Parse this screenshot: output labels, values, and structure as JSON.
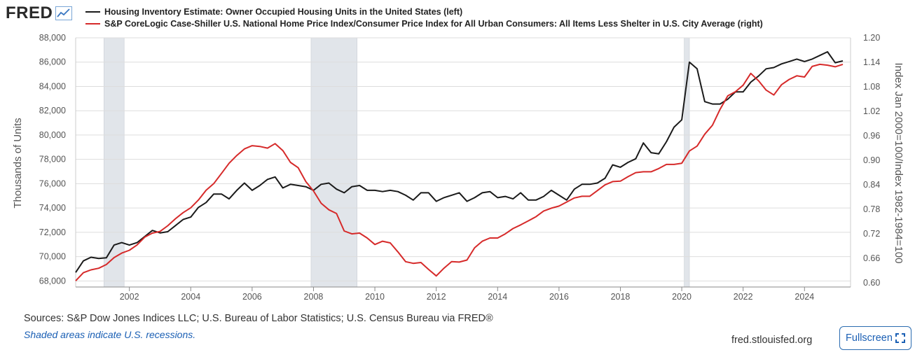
{
  "header": {
    "logo_text": "FRED",
    "logo_icon": "trend-chart-icon"
  },
  "colors": {
    "series_left": "#1a1a1a",
    "series_right": "#d62a2a",
    "recession_fill": "#e1e5ea",
    "grid": "#dddddd",
    "link_blue": "#1a5fb4"
  },
  "chart_data": {
    "type": "line",
    "series": [
      {
        "name": "Housing Inventory Estimate: Owner Occupied Housing Units in the United States (left)",
        "axis": "left",
        "values": [
          [
            2000.25,
            68700
          ],
          [
            2000.5,
            69650
          ],
          [
            2000.75,
            69950
          ],
          [
            2001.0,
            69850
          ],
          [
            2001.25,
            69900
          ],
          [
            2001.5,
            70950
          ],
          [
            2001.75,
            71150
          ],
          [
            2002.0,
            70950
          ],
          [
            2002.25,
            71150
          ],
          [
            2002.5,
            71650
          ],
          [
            2002.75,
            72150
          ],
          [
            2003.0,
            71950
          ],
          [
            2003.25,
            72050
          ],
          [
            2003.5,
            72550
          ],
          [
            2003.75,
            73050
          ],
          [
            2004.0,
            73250
          ],
          [
            2004.25,
            74050
          ],
          [
            2004.5,
            74450
          ],
          [
            2004.75,
            75150
          ],
          [
            2005.0,
            75150
          ],
          [
            2005.25,
            74750
          ],
          [
            2005.5,
            75450
          ],
          [
            2005.75,
            76050
          ],
          [
            2006.0,
            75450
          ],
          [
            2006.25,
            75850
          ],
          [
            2006.5,
            76350
          ],
          [
            2006.75,
            76550
          ],
          [
            2007.0,
            75650
          ],
          [
            2007.25,
            75950
          ],
          [
            2007.5,
            75850
          ],
          [
            2007.75,
            75750
          ],
          [
            2008.0,
            75450
          ],
          [
            2008.25,
            75950
          ],
          [
            2008.5,
            76050
          ],
          [
            2008.75,
            75550
          ],
          [
            2009.0,
            75250
          ],
          [
            2009.25,
            75750
          ],
          [
            2009.5,
            75850
          ],
          [
            2009.75,
            75450
          ],
          [
            2010.0,
            75450
          ],
          [
            2010.25,
            75350
          ],
          [
            2010.5,
            75450
          ],
          [
            2010.75,
            75350
          ],
          [
            2011.0,
            75050
          ],
          [
            2011.25,
            74650
          ],
          [
            2011.5,
            75250
          ],
          [
            2011.75,
            75250
          ],
          [
            2012.0,
            74550
          ],
          [
            2012.25,
            74850
          ],
          [
            2012.5,
            75050
          ],
          [
            2012.75,
            75250
          ],
          [
            2013.0,
            74550
          ],
          [
            2013.25,
            74850
          ],
          [
            2013.5,
            75250
          ],
          [
            2013.75,
            75350
          ],
          [
            2014.0,
            74850
          ],
          [
            2014.25,
            74950
          ],
          [
            2014.5,
            74750
          ],
          [
            2014.75,
            75250
          ],
          [
            2015.0,
            74650
          ],
          [
            2015.25,
            74650
          ],
          [
            2015.5,
            74950
          ],
          [
            2015.75,
            75450
          ],
          [
            2016.0,
            75050
          ],
          [
            2016.25,
            74650
          ],
          [
            2016.5,
            75550
          ],
          [
            2016.75,
            75950
          ],
          [
            2017.0,
            75950
          ],
          [
            2017.25,
            76050
          ],
          [
            2017.5,
            76450
          ],
          [
            2017.75,
            77550
          ],
          [
            2018.0,
            77350
          ],
          [
            2018.25,
            77750
          ],
          [
            2018.5,
            78050
          ],
          [
            2018.75,
            79350
          ],
          [
            2019.0,
            78550
          ],
          [
            2019.25,
            78450
          ],
          [
            2019.5,
            79450
          ],
          [
            2019.75,
            80650
          ],
          [
            2020.0,
            81250
          ],
          [
            2020.25,
            86000
          ],
          [
            2020.5,
            85450
          ],
          [
            2020.75,
            82750
          ],
          [
            2021.0,
            82550
          ],
          [
            2021.25,
            82550
          ],
          [
            2021.5,
            82950
          ],
          [
            2021.75,
            83550
          ],
          [
            2022.0,
            83550
          ],
          [
            2022.25,
            84350
          ],
          [
            2022.5,
            84850
          ],
          [
            2022.75,
            85450
          ],
          [
            2023.0,
            85550
          ],
          [
            2023.25,
            85850
          ],
          [
            2023.5,
            86050
          ],
          [
            2023.75,
            86250
          ],
          [
            2024.0,
            86050
          ],
          [
            2024.25,
            86250
          ],
          [
            2024.5,
            86550
          ],
          [
            2024.75,
            86850
          ],
          [
            2025.0,
            85950
          ],
          [
            2025.25,
            86100
          ]
        ]
      },
      {
        "name": "S&P CoreLogic Case-Shiller U.S. National Home Price Index/Consumer Price Index for All Urban Consumers: All Items Less Shelter in U.S. City Average (right)",
        "axis": "right",
        "values": [
          [
            2000.25,
            0.605
          ],
          [
            2000.5,
            0.625
          ],
          [
            2000.75,
            0.632
          ],
          [
            2001.0,
            0.636
          ],
          [
            2001.25,
            0.645
          ],
          [
            2001.5,
            0.662
          ],
          [
            2001.75,
            0.673
          ],
          [
            2002.0,
            0.68
          ],
          [
            2002.25,
            0.693
          ],
          [
            2002.5,
            0.712
          ],
          [
            2002.75,
            0.722
          ],
          [
            2003.0,
            0.726
          ],
          [
            2003.25,
            0.74
          ],
          [
            2003.5,
            0.757
          ],
          [
            2003.75,
            0.772
          ],
          [
            2004.0,
            0.784
          ],
          [
            2004.25,
            0.803
          ],
          [
            2004.5,
            0.827
          ],
          [
            2004.75,
            0.843
          ],
          [
            2005.0,
            0.868
          ],
          [
            2005.25,
            0.893
          ],
          [
            2005.5,
            0.912
          ],
          [
            2005.75,
            0.928
          ],
          [
            2006.0,
            0.936
          ],
          [
            2006.25,
            0.934
          ],
          [
            2006.5,
            0.93
          ],
          [
            2006.75,
            0.941
          ],
          [
            2007.0,
            0.924
          ],
          [
            2007.25,
            0.895
          ],
          [
            2007.5,
            0.882
          ],
          [
            2007.75,
            0.848
          ],
          [
            2008.0,
            0.825
          ],
          [
            2008.25,
            0.795
          ],
          [
            2008.5,
            0.779
          ],
          [
            2008.75,
            0.77
          ],
          [
            2009.0,
            0.727
          ],
          [
            2009.25,
            0.72
          ],
          [
            2009.5,
            0.722
          ],
          [
            2009.75,
            0.71
          ],
          [
            2010.0,
            0.694
          ],
          [
            2010.25,
            0.702
          ],
          [
            2010.5,
            0.698
          ],
          [
            2010.75,
            0.676
          ],
          [
            2011.0,
            0.652
          ],
          [
            2011.25,
            0.648
          ],
          [
            2011.5,
            0.65
          ],
          [
            2011.75,
            0.633
          ],
          [
            2012.0,
            0.617
          ],
          [
            2012.25,
            0.636
          ],
          [
            2012.5,
            0.652
          ],
          [
            2012.75,
            0.651
          ],
          [
            2013.0,
            0.656
          ],
          [
            2013.25,
            0.686
          ],
          [
            2013.5,
            0.702
          ],
          [
            2013.75,
            0.71
          ],
          [
            2014.0,
            0.71
          ],
          [
            2014.25,
            0.72
          ],
          [
            2014.5,
            0.733
          ],
          [
            2014.75,
            0.742
          ],
          [
            2015.0,
            0.752
          ],
          [
            2015.25,
            0.762
          ],
          [
            2015.5,
            0.776
          ],
          [
            2015.75,
            0.783
          ],
          [
            2016.0,
            0.788
          ],
          [
            2016.25,
            0.798
          ],
          [
            2016.5,
            0.808
          ],
          [
            2016.75,
            0.812
          ],
          [
            2017.0,
            0.812
          ],
          [
            2017.25,
            0.826
          ],
          [
            2017.5,
            0.84
          ],
          [
            2017.75,
            0.848
          ],
          [
            2018.0,
            0.849
          ],
          [
            2018.25,
            0.86
          ],
          [
            2018.5,
            0.87
          ],
          [
            2018.75,
            0.872
          ],
          [
            2019.0,
            0.872
          ],
          [
            2019.25,
            0.88
          ],
          [
            2019.5,
            0.89
          ],
          [
            2019.75,
            0.89
          ],
          [
            2020.0,
            0.893
          ],
          [
            2020.25,
            0.923
          ],
          [
            2020.5,
            0.935
          ],
          [
            2020.75,
            0.964
          ],
          [
            2021.0,
            0.986
          ],
          [
            2021.25,
            1.025
          ],
          [
            2021.5,
            1.058
          ],
          [
            2021.75,
            1.068
          ],
          [
            2022.0,
            1.084
          ],
          [
            2022.25,
            1.113
          ],
          [
            2022.5,
            1.095
          ],
          [
            2022.75,
            1.072
          ],
          [
            2023.0,
            1.06
          ],
          [
            2023.25,
            1.085
          ],
          [
            2023.5,
            1.098
          ],
          [
            2023.75,
            1.107
          ],
          [
            2024.0,
            1.104
          ],
          [
            2024.25,
            1.13
          ],
          [
            2024.5,
            1.135
          ],
          [
            2024.75,
            1.133
          ],
          [
            2025.0,
            1.129
          ],
          [
            2025.25,
            1.135
          ]
        ]
      }
    ],
    "recessions": [
      [
        2001.17,
        2001.83
      ],
      [
        2007.92,
        2009.42
      ],
      [
        2020.08,
        2020.25
      ]
    ],
    "x_ticks": [
      2002,
      2004,
      2006,
      2008,
      2010,
      2012,
      2014,
      2016,
      2018,
      2020,
      2022,
      2024
    ],
    "x_tick_labels": [
      "2002",
      "2004",
      "2006",
      "2008",
      "2010",
      "2012",
      "2014",
      "2016",
      "2018",
      "2020",
      "2022",
      "2024"
    ],
    "xlim": [
      2000.25,
      2025.5
    ],
    "y_left": {
      "label": "Thousands of Units",
      "lim": [
        67500,
        88000
      ],
      "ticks": [
        68000,
        70000,
        72000,
        74000,
        76000,
        78000,
        80000,
        82000,
        84000,
        86000,
        88000
      ],
      "tick_labels": [
        "68,000",
        "70,000",
        "72,000",
        "74,000",
        "76,000",
        "78,000",
        "80,000",
        "82,000",
        "84,000",
        "86,000",
        "88,000"
      ]
    },
    "y_right": {
      "label": "Index Jan 2000=100/Index 1982-1984=100",
      "lim": [
        0.59,
        1.2
      ],
      "ticks": [
        0.6,
        0.66,
        0.72,
        0.78,
        0.84,
        0.9,
        0.96,
        1.02,
        1.08,
        1.14,
        1.2
      ],
      "tick_labels": [
        "0.60",
        "0.66",
        "0.72",
        "0.78",
        "0.84",
        "0.90",
        "0.96",
        "1.02",
        "1.08",
        "1.14",
        "1.20"
      ]
    },
    "grid": true
  },
  "footer": {
    "sources": "Sources: S&P Dow Jones Indices LLC; U.S. Bureau of Labor Statistics; U.S. Census Bureau via FRED®",
    "note": "Shaded areas indicate U.S. recessions.",
    "site": "fred.stlouisfed.org",
    "fullscreen_label": "Fullscreen",
    "fullscreen_icon": "expand-icon"
  }
}
